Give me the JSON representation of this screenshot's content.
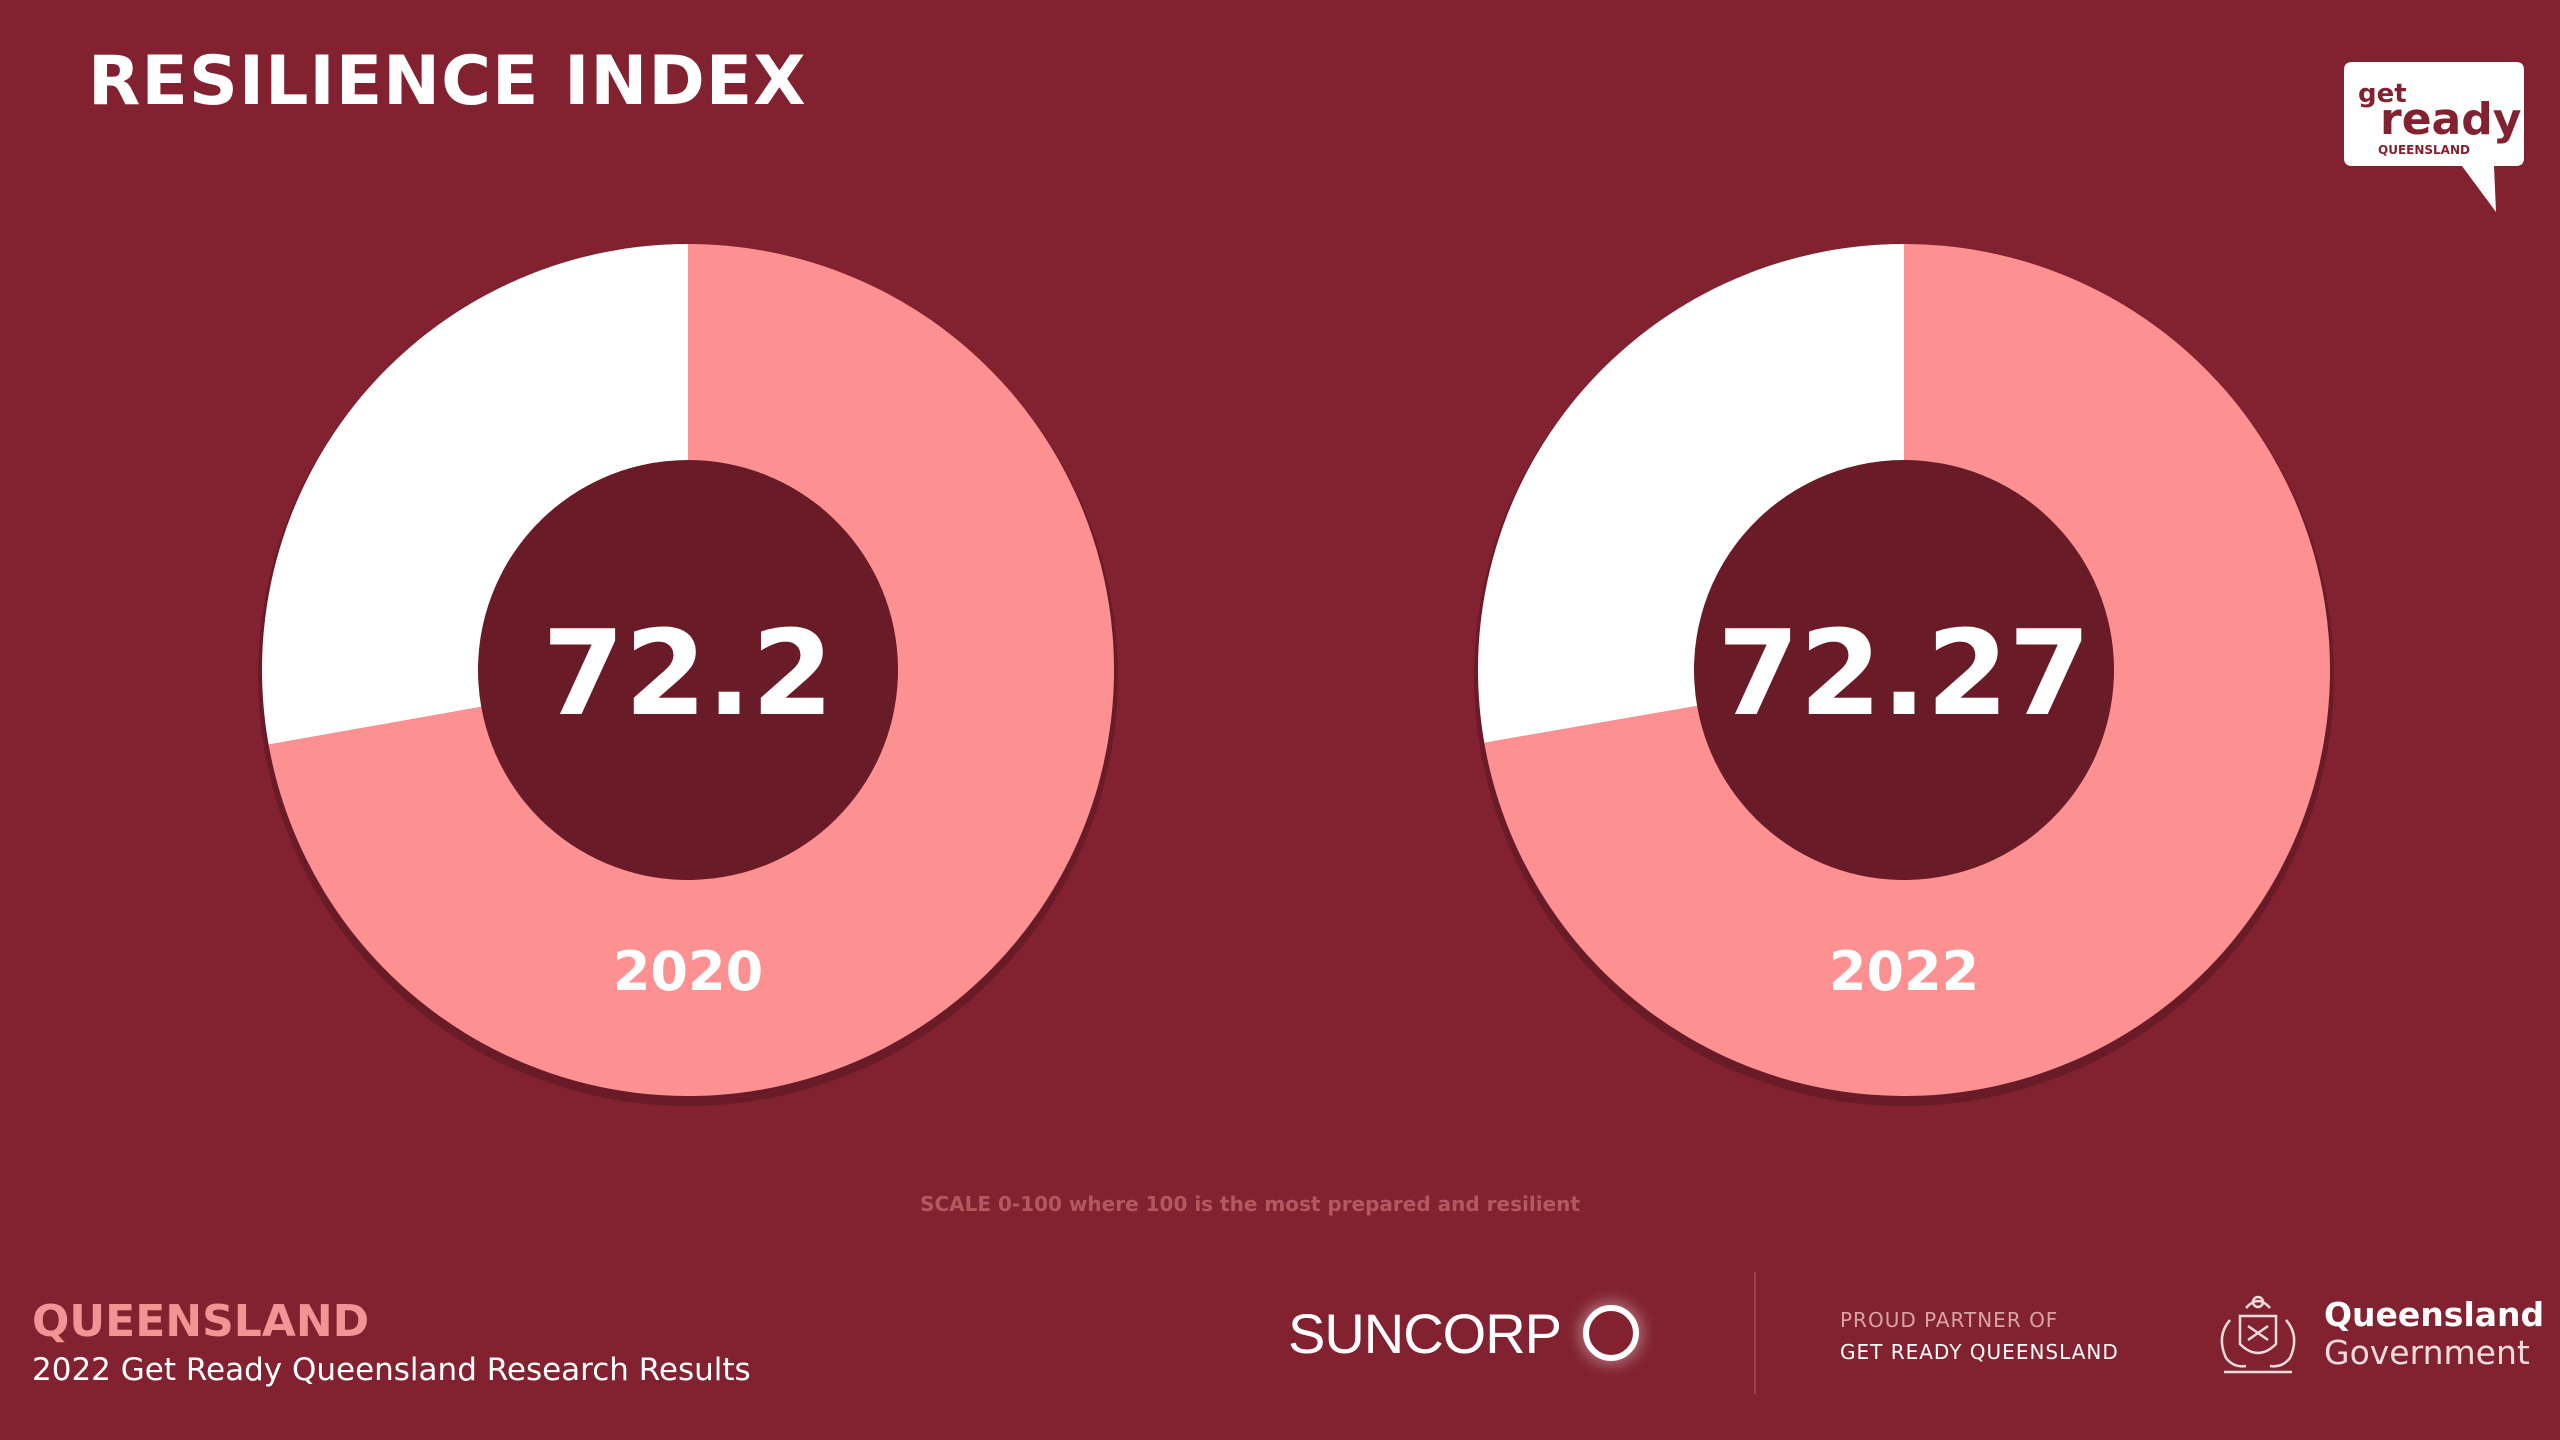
{
  "header": {
    "title": "RESILIENCE INDEX"
  },
  "logo": {
    "line1": "get",
    "line2": "ready",
    "line3": "QUEENSLAND"
  },
  "chart_data": {
    "type": "pie",
    "scale_note": "SCALE 0-100 where 100 is the most prepared and resilient",
    "scale_max": 100,
    "charts": [
      {
        "year": "2020",
        "value": 72.2,
        "value_label": "72.2",
        "remainder": 27.8
      },
      {
        "year": "2022",
        "value": 72.27,
        "value_label": "72.27",
        "remainder": 27.73
      }
    ],
    "colors": {
      "value": "#fd9090",
      "remainder": "#ffffff",
      "background": "#822231"
    }
  },
  "footer": {
    "region": "QUEENSLAND",
    "subtitle": "2022 Get Ready Queensland Research Results",
    "sponsor": "SUNCORP",
    "partner_line1": "PROUD PARTNER OF",
    "partner_line2": "GET READY QUEENSLAND",
    "gov_line1": "Queensland",
    "gov_line2": "Government"
  }
}
